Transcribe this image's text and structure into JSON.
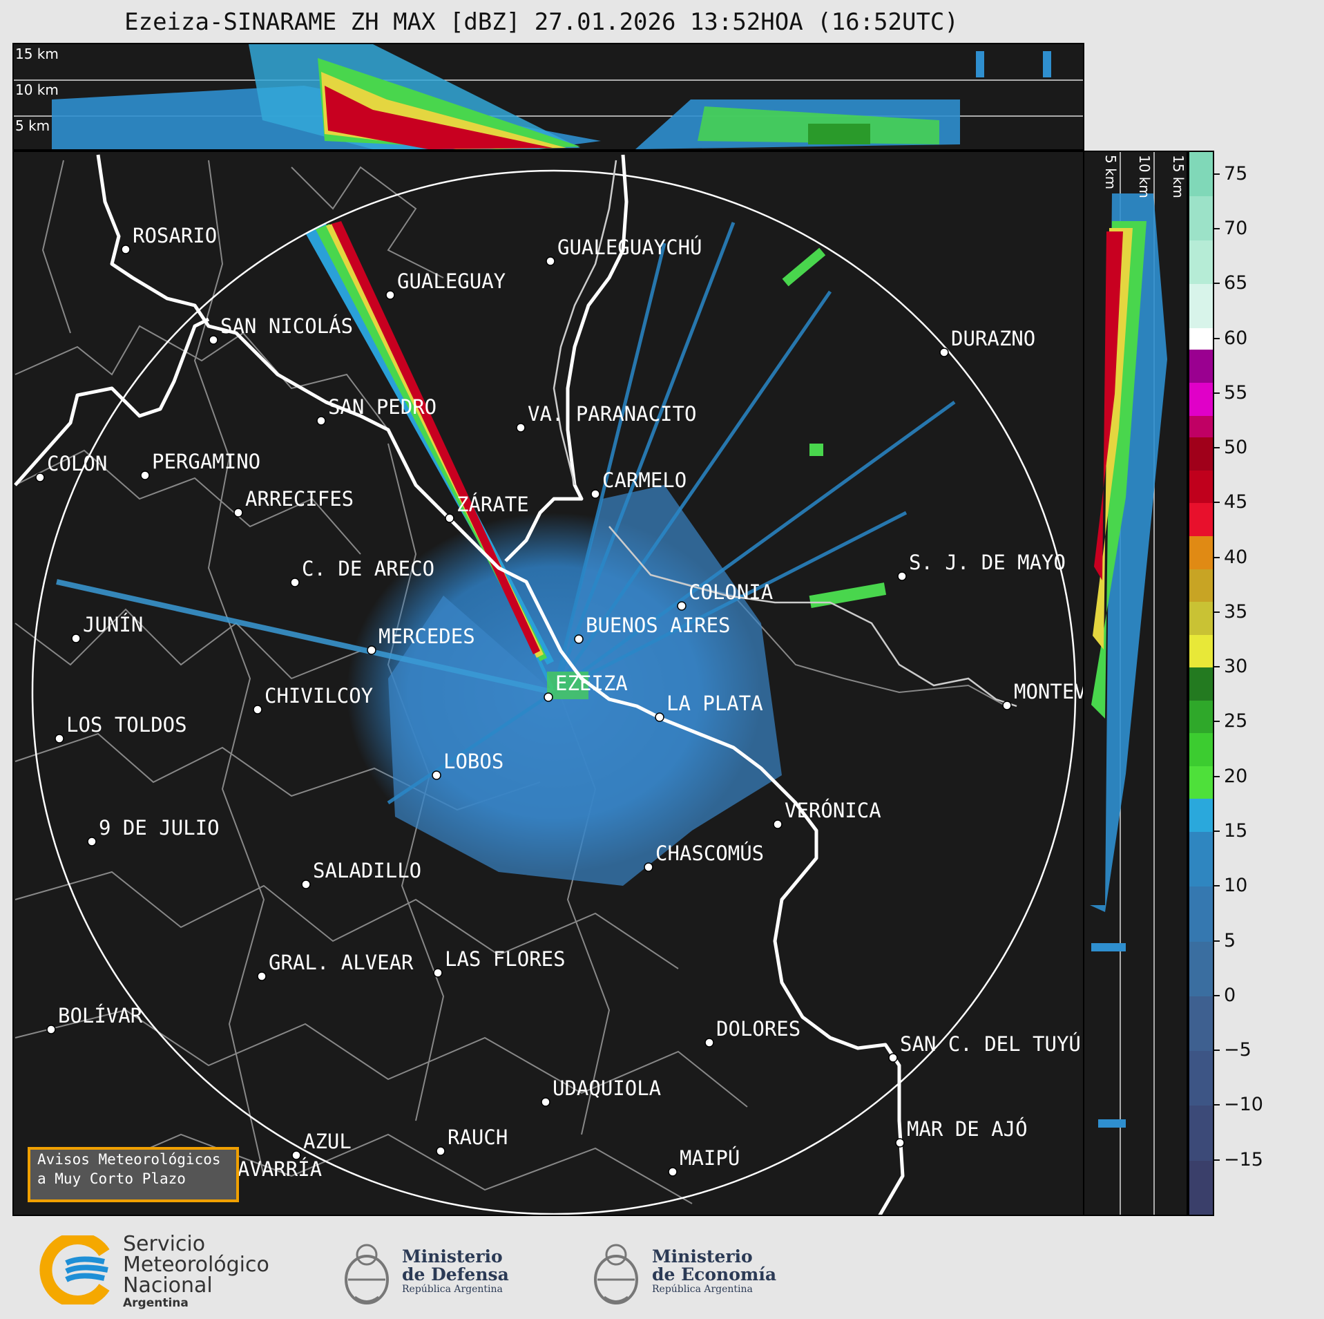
{
  "title": "Ezeiza-SINARAME ZH MAX [dBZ] 27.01.2026 13:52HOA (16:52UTC)",
  "height_labels": {
    "top": [
      "15 km",
      "10 km",
      "5 km"
    ],
    "side": [
      "5 km",
      "10 km",
      "15 km"
    ]
  },
  "colorbar": {
    "ticks": [
      "75",
      "70",
      "65",
      "60",
      "55",
      "50",
      "45",
      "40",
      "35",
      "30",
      "25",
      "20",
      "15",
      "10",
      "5",
      "0",
      "−5",
      "−10",
      "−15"
    ]
  },
  "cities": [
    {
      "name": "ROSARIO"
    },
    {
      "name": "GUALEGUAYCHÚ"
    },
    {
      "name": "GUALEGUAY"
    },
    {
      "name": "SAN NICOLÁS"
    },
    {
      "name": "DURAZNO"
    },
    {
      "name": "SAN PEDRO"
    },
    {
      "name": "VA. PARANACITO"
    },
    {
      "name": "COLON"
    },
    {
      "name": "PERGAMINO"
    },
    {
      "name": "CARMELO"
    },
    {
      "name": "ARRECIFES"
    },
    {
      "name": "ZÁRATE"
    },
    {
      "name": "S. J. DE MAYO"
    },
    {
      "name": "C. DE ARECO"
    },
    {
      "name": "COLONIA"
    },
    {
      "name": "JUNÍN"
    },
    {
      "name": "BUENOS AIRES"
    },
    {
      "name": "MERCEDES"
    },
    {
      "name": "MONTEV"
    },
    {
      "name": "EZEIZA"
    },
    {
      "name": "CHIVILCOY"
    },
    {
      "name": "LA PLATA"
    },
    {
      "name": "LOS TOLDOS"
    },
    {
      "name": "LOBOS"
    },
    {
      "name": "VERÓNICA"
    },
    {
      "name": "9 DE JULIO"
    },
    {
      "name": "CHASCOMÚS"
    },
    {
      "name": "SALADILLO"
    },
    {
      "name": "GRAL. ALVEAR"
    },
    {
      "name": "LAS FLORES"
    },
    {
      "name": "BOLÍVAR"
    },
    {
      "name": "DOLORES"
    },
    {
      "name": "SAN C. DEL TUYÚ"
    },
    {
      "name": "UDAQUIOLA"
    },
    {
      "name": "MAR DE AJÓ"
    },
    {
      "name": "AZUL"
    },
    {
      "name": "RAUCH"
    },
    {
      "name": "MAIPÚ"
    },
    {
      "name": "OLAVARRÍA"
    }
  ],
  "aviso": {
    "line1": "Avisos Meteorológicos",
    "line2": "a Muy Corto Plazo"
  },
  "footer": {
    "smn": {
      "line1": "Servicio",
      "line2": "Meteorológico",
      "line3": "Nacional",
      "line4": "Argentina"
    },
    "defensa": {
      "line1": "Ministerio",
      "line2": "de Defensa",
      "line3": "República Argentina"
    },
    "economia": {
      "line1": "Ministerio",
      "line2": "de Economía",
      "line3": "República Argentina"
    }
  }
}
